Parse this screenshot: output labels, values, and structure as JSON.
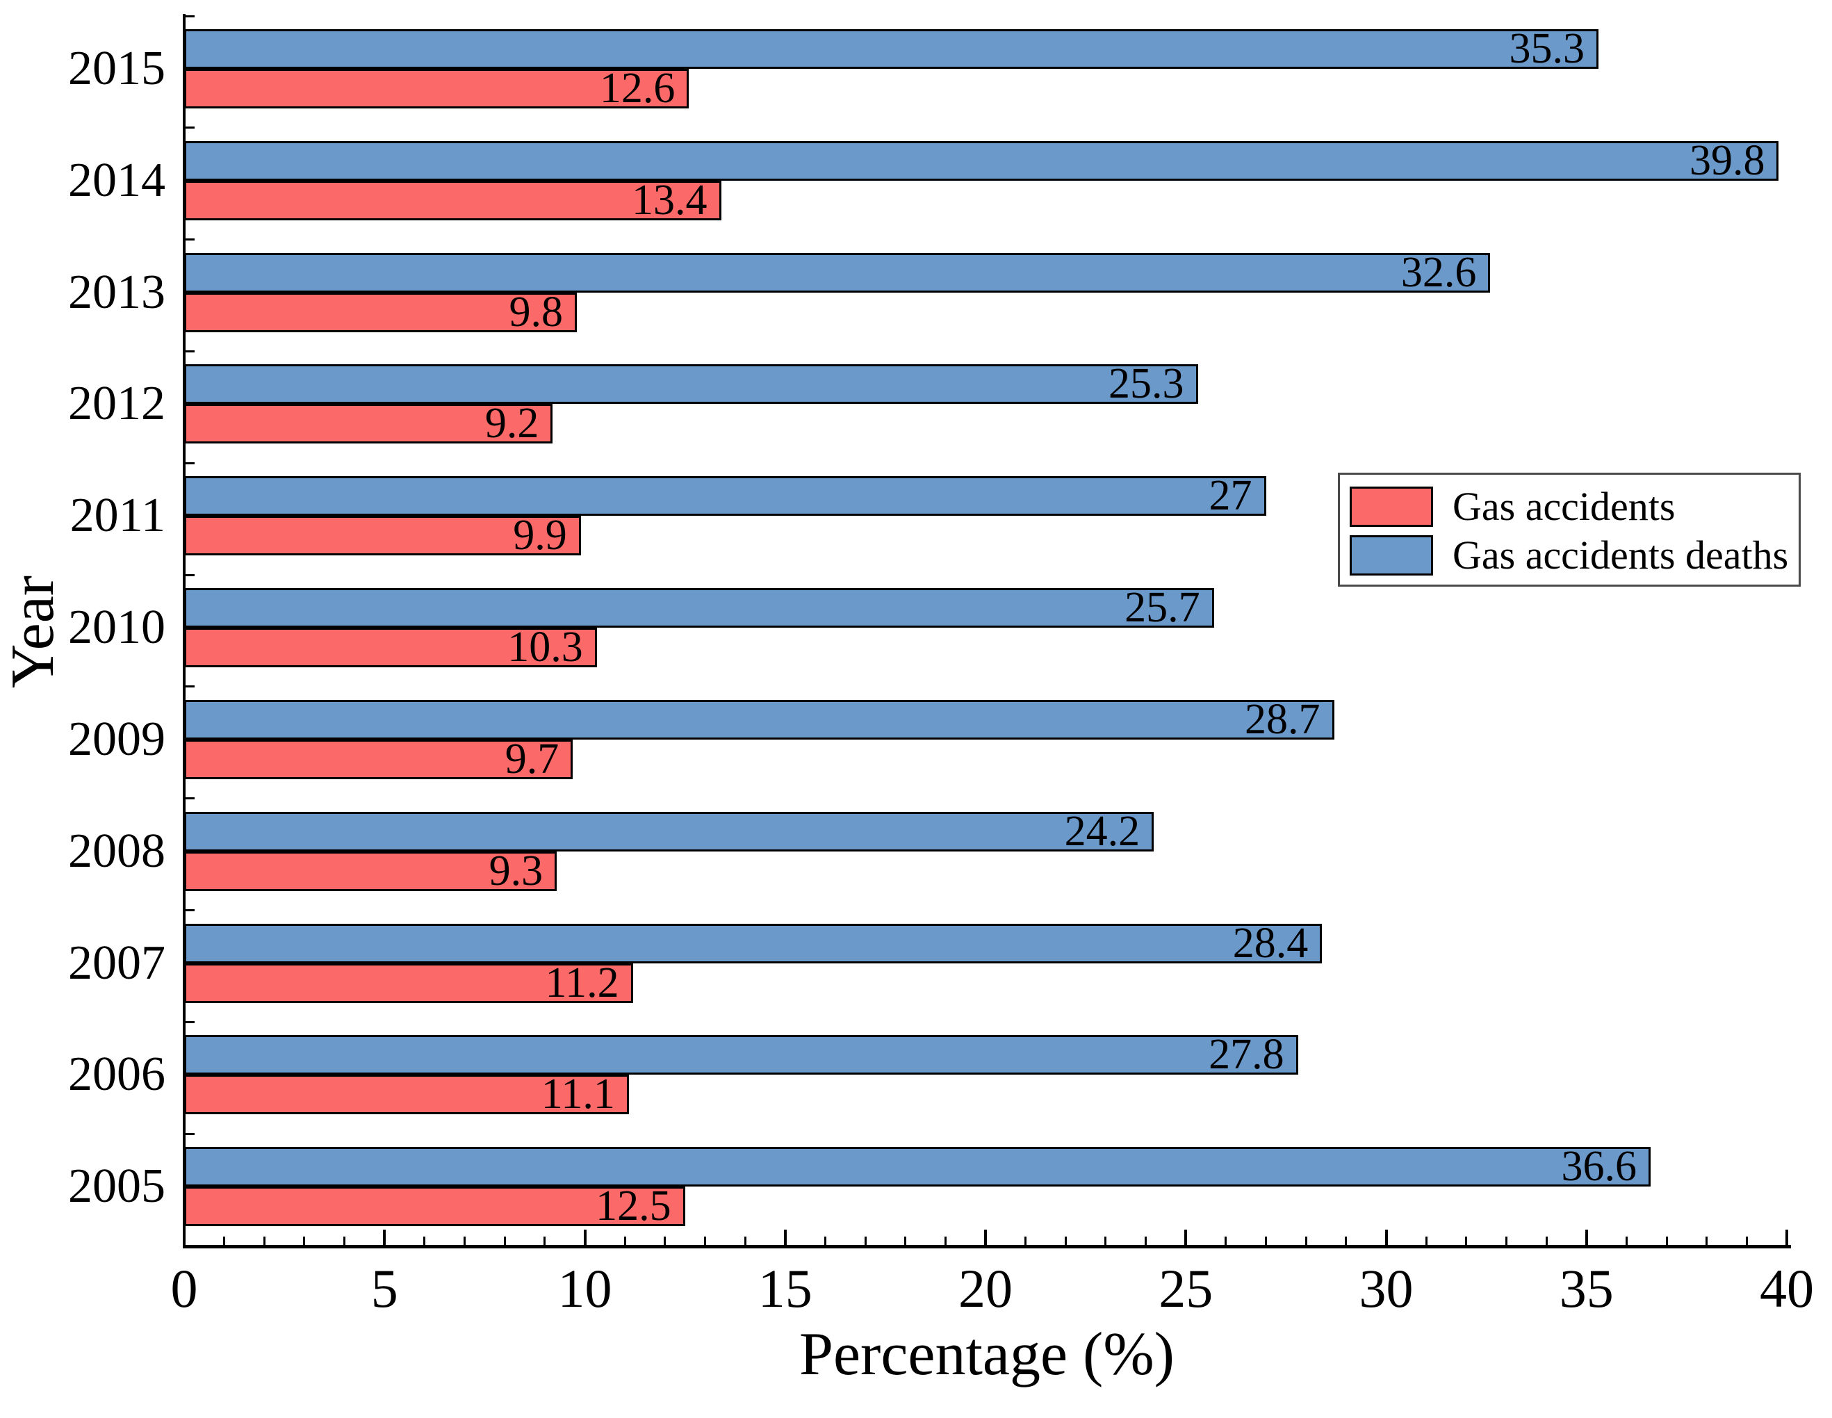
{
  "chart_data": {
    "type": "bar",
    "orientation": "horizontal",
    "title": "",
    "xlabel": "Percentage (%)",
    "ylabel": "Year",
    "categories": [
      "2015",
      "2014",
      "2013",
      "2012",
      "2011",
      "2010",
      "2009",
      "2008",
      "2007",
      "2006",
      "2005"
    ],
    "series": [
      {
        "name": "Gas accidents",
        "color": "#FB6969",
        "values": [
          12.6,
          13.4,
          9.8,
          9.2,
          9.9,
          10.3,
          9.7,
          9.3,
          11.2,
          11.1,
          12.5
        ]
      },
      {
        "name": "Gas accidents deaths",
        "color": "#6B99CA",
        "values": [
          35.3,
          39.8,
          32.6,
          25.3,
          27,
          25.7,
          28.7,
          24.2,
          28.4,
          27.8,
          36.6
        ]
      }
    ],
    "xlim": [
      0,
      40
    ],
    "x_major_ticks": [
      0,
      5,
      10,
      15,
      20,
      25,
      30,
      35,
      40
    ],
    "x_minor_step": 1,
    "grid": false,
    "value_labels": "inside-end",
    "legend_position": "middle-right",
    "bar_order_note": "In each year group the deaths bar is drawn above the accidents bar"
  }
}
